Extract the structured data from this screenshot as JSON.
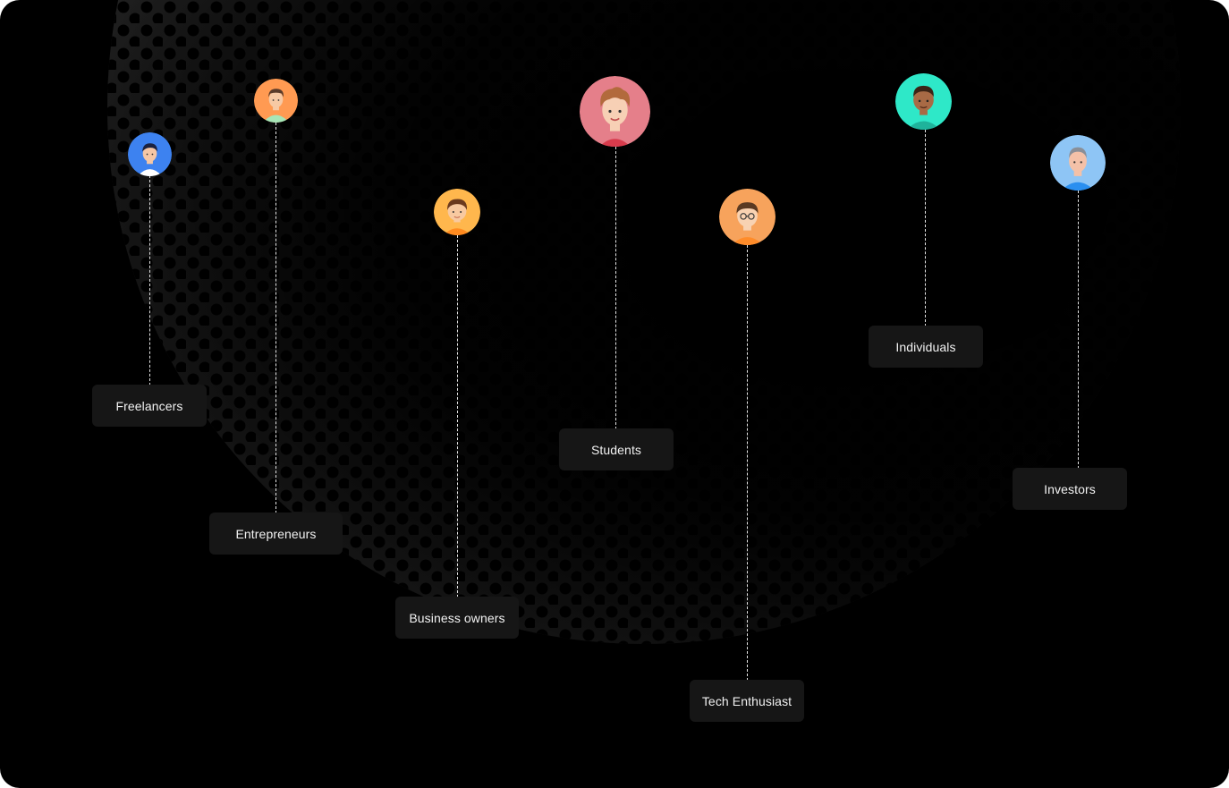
{
  "audience": [
    {
      "id": "freelancers",
      "label": "Freelancers",
      "icon": "freelancer-avatar-icon",
      "bg": "#3d82f0"
    },
    {
      "id": "entrepreneurs",
      "label": "Entrepreneurs",
      "icon": "entrepreneur-avatar-icon",
      "bg": "#ff9a52"
    },
    {
      "id": "business",
      "label": "Business owners",
      "icon": "business-owner-avatar-icon",
      "bg": "#ffb74d"
    },
    {
      "id": "students",
      "label": "Students",
      "icon": "student-avatar-icon",
      "bg": "#e57f8a"
    },
    {
      "id": "tech",
      "label": "Tech Enthusiast",
      "icon": "tech-enthusiast-avatar-icon",
      "bg": "#f7a35c"
    },
    {
      "id": "individuals",
      "label": "Individuals",
      "icon": "individual-avatar-icon",
      "bg": "#2ee8c8"
    },
    {
      "id": "investors",
      "label": "Investors",
      "icon": "investor-avatar-icon",
      "bg": "#8ec5f5"
    }
  ]
}
